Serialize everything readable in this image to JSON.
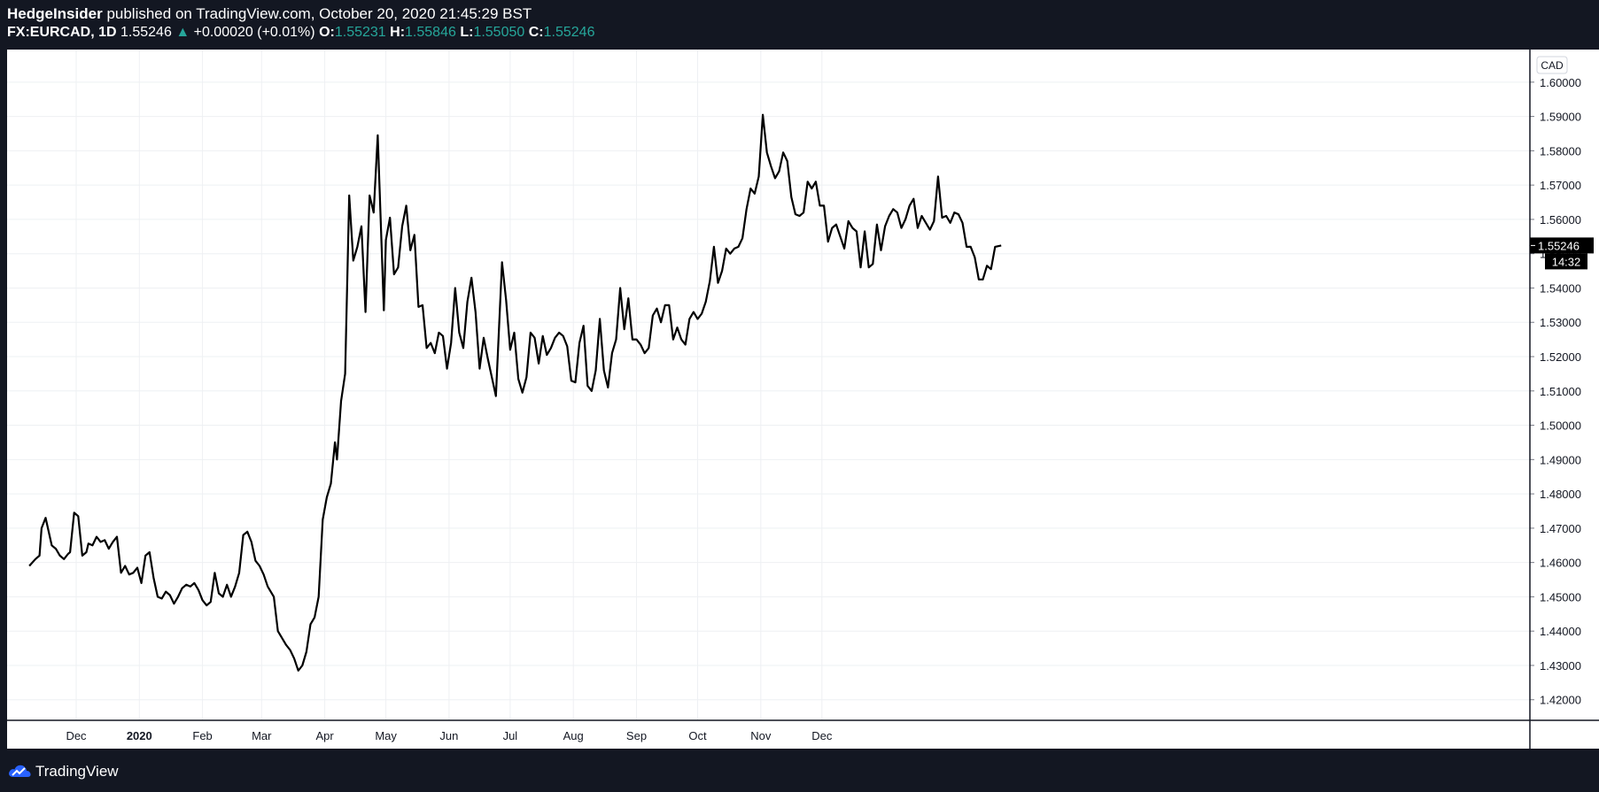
{
  "header": {
    "author": "HedgeInsider",
    "published_text": "published on TradingView.com, October 20, 2020 21:45:29 BST",
    "symbol": "FX:EURCAD, 1D",
    "last_price": "1.55246",
    "change": "+0.00020 (+0.01%)",
    "open_label": "O:",
    "open": "1.55231",
    "high_label": "H:",
    "high": "1.55846",
    "low_label": "L:",
    "low": "1.55050",
    "close_label": "C:",
    "close": "1.55246",
    "up_color": "#26a69a"
  },
  "footer": {
    "brand": "TradingView",
    "logo_icon": "tradingview-cloud-icon"
  },
  "chart_data": {
    "type": "line",
    "currency_badge": "CAD",
    "current_price_label": "1.55246",
    "countdown_label": "14:32",
    "ylim": [
      1.414,
      1.6095
    ],
    "y_ticks": [
      "1.42000",
      "1.43000",
      "1.44000",
      "1.45000",
      "1.46000",
      "1.47000",
      "1.48000",
      "1.49000",
      "1.50000",
      "1.51000",
      "1.52000",
      "1.53000",
      "1.54000",
      "1.55000",
      "1.56000",
      "1.57000",
      "1.58000",
      "1.59000",
      "1.60000"
    ],
    "x_ticks": [
      {
        "label": "Dec",
        "date": "2019-12-01",
        "bold": false
      },
      {
        "label": "2020",
        "date": "2020-01-01",
        "bold": true
      },
      {
        "label": "Feb",
        "date": "2020-02-01",
        "bold": false
      },
      {
        "label": "Mar",
        "date": "2020-03-01",
        "bold": false
      },
      {
        "label": "Apr",
        "date": "2020-04-01",
        "bold": false
      },
      {
        "label": "May",
        "date": "2020-05-01",
        "bold": false
      },
      {
        "label": "Jun",
        "date": "2020-06-01",
        "bold": false
      },
      {
        "label": "Jul",
        "date": "2020-07-01",
        "bold": false
      },
      {
        "label": "Aug",
        "date": "2020-08-01",
        "bold": false
      },
      {
        "label": "Sep",
        "date": "2020-09-01",
        "bold": false
      },
      {
        "label": "Oct",
        "date": "2020-10-01",
        "bold": false
      },
      {
        "label": "Nov",
        "date": "2020-11-01",
        "bold": false
      },
      {
        "label": "Dec",
        "date": "2020-12-01",
        "bold": false
      }
    ],
    "grid": true,
    "line_color": "#000000",
    "series": [
      {
        "values": [
          [
            "2019-11-08",
            1.459
          ],
          [
            "2019-11-11",
            1.461
          ],
          [
            "2019-11-13",
            1.462
          ],
          [
            "2019-11-14",
            1.47
          ],
          [
            "2019-11-16",
            1.473
          ],
          [
            "2019-11-19",
            1.465
          ],
          [
            "2019-11-21",
            1.464
          ],
          [
            "2019-11-23",
            1.462
          ],
          [
            "2019-11-25",
            1.461
          ],
          [
            "2019-11-27",
            1.4625
          ],
          [
            "2019-11-28",
            1.463
          ],
          [
            "2019-11-30",
            1.4745
          ],
          [
            "2019-12-02",
            1.4735
          ],
          [
            "2019-12-04",
            1.462
          ],
          [
            "2019-12-06",
            1.463
          ],
          [
            "2019-12-07",
            1.4655
          ],
          [
            "2019-12-09",
            1.465
          ],
          [
            "2019-12-11",
            1.4675
          ],
          [
            "2019-12-13",
            1.466
          ],
          [
            "2019-12-15",
            1.4665
          ],
          [
            "2019-12-17",
            1.464
          ],
          [
            "2019-12-19",
            1.466
          ],
          [
            "2019-12-21",
            1.4675
          ],
          [
            "2019-12-23",
            1.457
          ],
          [
            "2019-12-25",
            1.459
          ],
          [
            "2019-12-27",
            1.4565
          ],
          [
            "2019-12-29",
            1.457
          ],
          [
            "2019-12-31",
            1.4585
          ],
          [
            "2020-01-02",
            1.454
          ],
          [
            "2020-01-04",
            1.462
          ],
          [
            "2020-01-06",
            1.463
          ],
          [
            "2020-01-08",
            1.4555
          ],
          [
            "2020-01-10",
            1.45
          ],
          [
            "2020-01-12",
            1.4495
          ],
          [
            "2020-01-14",
            1.4515
          ],
          [
            "2020-01-16",
            1.4505
          ],
          [
            "2020-01-18",
            1.448
          ],
          [
            "2020-01-20",
            1.45
          ],
          [
            "2020-01-22",
            1.4525
          ],
          [
            "2020-01-24",
            1.4535
          ],
          [
            "2020-01-26",
            1.453
          ],
          [
            "2020-01-28",
            1.454
          ],
          [
            "2020-01-30",
            1.452
          ],
          [
            "2020-02-01",
            1.449
          ],
          [
            "2020-02-03",
            1.4475
          ],
          [
            "2020-02-05",
            1.4485
          ],
          [
            "2020-02-07",
            1.457
          ],
          [
            "2020-02-09",
            1.451
          ],
          [
            "2020-02-11",
            1.45
          ],
          [
            "2020-02-13",
            1.4535
          ],
          [
            "2020-02-15",
            1.45
          ],
          [
            "2020-02-17",
            1.453
          ],
          [
            "2020-02-19",
            1.457
          ],
          [
            "2020-02-21",
            1.468
          ],
          [
            "2020-02-23",
            1.469
          ],
          [
            "2020-02-25",
            1.466
          ],
          [
            "2020-02-27",
            1.4605
          ],
          [
            "2020-02-29",
            1.459
          ],
          [
            "2020-03-02",
            1.4565
          ],
          [
            "2020-03-04",
            1.453
          ],
          [
            "2020-03-07",
            1.45
          ],
          [
            "2020-03-09",
            1.44
          ],
          [
            "2020-03-11",
            1.438
          ],
          [
            "2020-03-13",
            1.436
          ],
          [
            "2020-03-15",
            1.4345
          ],
          [
            "2020-03-17",
            1.432
          ],
          [
            "2020-03-19",
            1.4285
          ],
          [
            "2020-03-21",
            1.43
          ],
          [
            "2020-03-23",
            1.434
          ],
          [
            "2020-03-25",
            1.442
          ],
          [
            "2020-03-27",
            1.444
          ],
          [
            "2020-03-29",
            1.45
          ],
          [
            "2020-03-31",
            1.4725
          ],
          [
            "2020-04-02",
            1.479
          ],
          [
            "2020-04-04",
            1.483
          ],
          [
            "2020-04-06",
            1.495
          ],
          [
            "2020-04-07",
            1.49
          ],
          [
            "2020-04-09",
            1.507
          ],
          [
            "2020-04-11",
            1.515
          ],
          [
            "2020-04-13",
            1.567
          ],
          [
            "2020-04-15",
            1.548
          ],
          [
            "2020-04-17",
            1.552
          ],
          [
            "2020-04-19",
            1.558
          ],
          [
            "2020-04-21",
            1.533
          ],
          [
            "2020-04-23",
            1.567
          ],
          [
            "2020-04-25",
            1.562
          ],
          [
            "2020-04-27",
            1.5845
          ],
          [
            "2020-04-30",
            1.5335
          ],
          [
            "2020-05-01",
            1.554
          ],
          [
            "2020-05-03",
            1.5605
          ],
          [
            "2020-05-05",
            1.544
          ],
          [
            "2020-05-07",
            1.546
          ],
          [
            "2020-05-09",
            1.558
          ],
          [
            "2020-05-11",
            1.564
          ],
          [
            "2020-05-13",
            1.551
          ],
          [
            "2020-05-15",
            1.5555
          ],
          [
            "2020-05-17",
            1.5345
          ],
          [
            "2020-05-19",
            1.535
          ],
          [
            "2020-05-21",
            1.5225
          ],
          [
            "2020-05-23",
            1.524
          ],
          [
            "2020-05-25",
            1.521
          ],
          [
            "2020-05-27",
            1.527
          ],
          [
            "2020-05-29",
            1.526
          ],
          [
            "2020-05-31",
            1.5165
          ],
          [
            "2020-06-02",
            1.524
          ],
          [
            "2020-06-04",
            1.54
          ],
          [
            "2020-06-06",
            1.527
          ],
          [
            "2020-06-08",
            1.5225
          ],
          [
            "2020-06-10",
            1.536
          ],
          [
            "2020-06-12",
            1.543
          ],
          [
            "2020-06-14",
            1.533
          ],
          [
            "2020-06-16",
            1.5165
          ],
          [
            "2020-06-18",
            1.5255
          ],
          [
            "2020-06-20",
            1.5195
          ],
          [
            "2020-06-22",
            1.514
          ],
          [
            "2020-06-24",
            1.5085
          ],
          [
            "2020-06-27",
            1.5475
          ],
          [
            "2020-06-29",
            1.5365
          ],
          [
            "2020-07-01",
            1.522
          ],
          [
            "2020-07-03",
            1.527
          ],
          [
            "2020-07-05",
            1.5135
          ],
          [
            "2020-07-07",
            1.5095
          ],
          [
            "2020-07-09",
            1.514
          ],
          [
            "2020-07-11",
            1.527
          ],
          [
            "2020-07-13",
            1.5255
          ],
          [
            "2020-07-15",
            1.518
          ],
          [
            "2020-07-17",
            1.526
          ],
          [
            "2020-07-19",
            1.5205
          ],
          [
            "2020-07-21",
            1.5225
          ],
          [
            "2020-07-23",
            1.5255
          ],
          [
            "2020-07-25",
            1.527
          ],
          [
            "2020-07-27",
            1.526
          ],
          [
            "2020-07-29",
            1.523
          ],
          [
            "2020-07-31",
            1.513
          ],
          [
            "2020-08-02",
            1.5125
          ],
          [
            "2020-08-04",
            1.524
          ],
          [
            "2020-08-06",
            1.529
          ],
          [
            "2020-08-08",
            1.5115
          ],
          [
            "2020-08-10",
            1.51
          ],
          [
            "2020-08-12",
            1.516
          ],
          [
            "2020-08-14",
            1.531
          ],
          [
            "2020-08-16",
            1.516
          ],
          [
            "2020-08-18",
            1.511
          ],
          [
            "2020-08-20",
            1.521
          ],
          [
            "2020-08-22",
            1.525
          ],
          [
            "2020-08-24",
            1.54
          ],
          [
            "2020-08-26",
            1.528
          ],
          [
            "2020-08-28",
            1.537
          ],
          [
            "2020-08-30",
            1.525
          ],
          [
            "2020-09-01",
            1.525
          ],
          [
            "2020-09-03",
            1.5235
          ],
          [
            "2020-09-05",
            1.521
          ],
          [
            "2020-09-07",
            1.5225
          ],
          [
            "2020-09-09",
            1.532
          ],
          [
            "2020-09-11",
            1.534
          ],
          [
            "2020-09-13",
            1.53
          ],
          [
            "2020-09-15",
            1.535
          ],
          [
            "2020-09-17",
            1.535
          ],
          [
            "2020-09-19",
            1.525
          ],
          [
            "2020-09-21",
            1.5285
          ],
          [
            "2020-09-23",
            1.525
          ],
          [
            "2020-09-25",
            1.5235
          ],
          [
            "2020-09-27",
            1.531
          ],
          [
            "2020-09-29",
            1.533
          ],
          [
            "2020-10-01",
            1.531
          ],
          [
            "2020-10-03",
            1.5325
          ],
          [
            "2020-10-05",
            1.536
          ],
          [
            "2020-10-07",
            1.542
          ],
          [
            "2020-10-09",
            1.552
          ],
          [
            "2020-10-11",
            1.5415
          ],
          [
            "2020-10-13",
            1.545
          ],
          [
            "2020-10-15",
            1.5515
          ],
          [
            "2020-10-17",
            1.55
          ],
          [
            "2020-10-19",
            1.5515
          ],
          [
            "2020-10-21",
            1.552
          ],
          [
            "2020-10-23",
            1.5545
          ],
          [
            "2020-10-25",
            1.563
          ],
          [
            "2020-10-27",
            1.569
          ],
          [
            "2020-10-29",
            1.5675
          ],
          [
            "2020-10-31",
            1.5725
          ],
          [
            "2020-11-02",
            1.5905
          ],
          [
            "2020-11-04",
            1.5795
          ],
          [
            "2020-11-06",
            1.5755
          ],
          [
            "2020-11-08",
            1.572
          ],
          [
            "2020-11-10",
            1.574
          ],
          [
            "2020-11-12",
            1.5795
          ],
          [
            "2020-11-14",
            1.577
          ],
          [
            "2020-11-16",
            1.5665
          ],
          [
            "2020-11-18",
            1.5615
          ],
          [
            "2020-11-20",
            1.561
          ],
          [
            "2020-11-22",
            1.562
          ],
          [
            "2020-11-24",
            1.571
          ],
          [
            "2020-11-26",
            1.569
          ],
          [
            "2020-11-28",
            1.571
          ],
          [
            "2020-11-30",
            1.564
          ],
          [
            "2020-12-02",
            1.564
          ],
          [
            "2020-12-04",
            1.5535
          ],
          [
            "2020-12-06",
            1.5575
          ],
          [
            "2020-12-08",
            1.5585
          ],
          [
            "2020-12-10",
            1.555
          ],
          [
            "2020-12-12",
            1.5515
          ],
          [
            "2020-12-14",
            1.5595
          ],
          [
            "2020-12-16",
            1.5575
          ],
          [
            "2020-12-18",
            1.5565
          ],
          [
            "2020-12-20",
            1.546
          ],
          [
            "2020-12-22",
            1.5565
          ],
          [
            "2020-12-24",
            1.546
          ],
          [
            "2020-12-26",
            1.547
          ],
          [
            "2020-12-28",
            1.5585
          ],
          [
            "2020-12-30",
            1.551
          ],
          [
            "2021-01-01",
            1.558
          ],
          [
            "2021-01-03",
            1.561
          ],
          [
            "2021-01-05",
            1.563
          ],
          [
            "2021-01-07",
            1.562
          ],
          [
            "2021-01-09",
            1.5575
          ],
          [
            "2021-01-11",
            1.56
          ],
          [
            "2021-01-13",
            1.564
          ],
          [
            "2021-01-15",
            1.566
          ],
          [
            "2021-01-17",
            1.5575
          ],
          [
            "2021-01-19",
            1.561
          ],
          [
            "2021-01-21",
            1.559
          ],
          [
            "2021-01-23",
            1.557
          ],
          [
            "2021-01-25",
            1.5595
          ],
          [
            "2021-01-27",
            1.5725
          ],
          [
            "2021-01-29",
            1.5605
          ],
          [
            "2021-01-31",
            1.561
          ],
          [
            "2021-02-02",
            1.559
          ],
          [
            "2021-02-04",
            1.562
          ],
          [
            "2021-02-06",
            1.5615
          ],
          [
            "2021-02-08",
            1.559
          ],
          [
            "2021-02-10",
            1.552
          ],
          [
            "2021-02-12",
            1.552
          ],
          [
            "2021-02-14",
            1.549
          ],
          [
            "2021-02-16",
            1.5425
          ],
          [
            "2021-02-18",
            1.5425
          ],
          [
            "2021-02-20",
            1.5465
          ],
          [
            "2021-02-22",
            1.5455
          ],
          [
            "2021-02-24",
            1.552
          ],
          [
            "2021-02-27",
            1.5524
          ]
        ]
      }
    ]
  }
}
